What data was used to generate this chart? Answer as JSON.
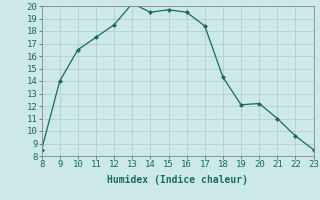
{
  "x": [
    8,
    9,
    10,
    11,
    12,
    13,
    14,
    15,
    16,
    17,
    18,
    19,
    20,
    21,
    22,
    23
  ],
  "y": [
    8.5,
    14,
    16.5,
    17.5,
    18.5,
    20.2,
    19.5,
    19.7,
    19.5,
    18.4,
    14.3,
    12.1,
    12.2,
    11.0,
    9.6,
    8.5
  ],
  "xlim": [
    8,
    23
  ],
  "ylim": [
    8,
    20
  ],
  "xticks": [
    8,
    9,
    10,
    11,
    12,
    13,
    14,
    15,
    16,
    17,
    18,
    19,
    20,
    21,
    22,
    23
  ],
  "yticks": [
    8,
    9,
    10,
    11,
    12,
    13,
    14,
    15,
    16,
    17,
    18,
    19,
    20
  ],
  "xlabel": "Humidex (Indice chaleur)",
  "line_color": "#1a6b5a",
  "marker": "D",
  "marker_size": 2,
  "bg_color": "#cce8e8",
  "grid_color": "#b0c8c8",
  "font_name": "monospace",
  "xlabel_fontsize": 7,
  "tick_fontsize": 6.5
}
